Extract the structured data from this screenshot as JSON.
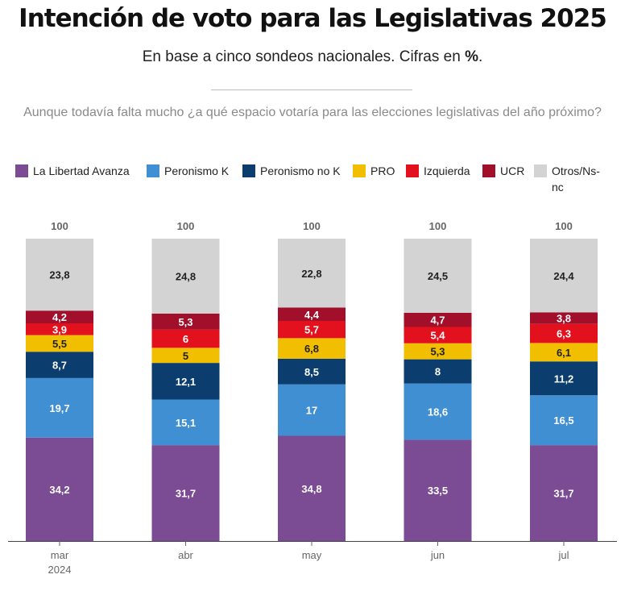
{
  "header": {
    "title": "Intención de voto para las Legislativas 2025",
    "subtitle_text": "En base a cinco sondeos nacionales. Cifras en ",
    "subtitle_unit": "%",
    "subtitle_end": ".",
    "question": "Aunque todavía falta mucho ¿a qué espacio votaría para las elecciones legislativas del año próximo?"
  },
  "chart_data": {
    "type": "bar",
    "stacked": true,
    "categories": [
      "mar",
      "abr",
      "may",
      "jun",
      "jul"
    ],
    "category_sublabels": [
      "2024",
      "",
      "",
      "",
      ""
    ],
    "totals": [
      "100",
      "100",
      "100",
      "100",
      "100"
    ],
    "ylim": [
      0,
      100
    ],
    "grid": false,
    "legend_position": "top",
    "series": [
      {
        "name": "La Libertad Avanza",
        "color": "#7b4c93",
        "labels": [
          "34,2",
          "31,7",
          "34,8",
          "33,5",
          "31,7"
        ],
        "values": [
          34.2,
          31.7,
          34.8,
          33.5,
          31.7
        ]
      },
      {
        "name": "Peronismo K",
        "color": "#3f8fd2",
        "labels": [
          "19,7",
          "15,1",
          "17",
          "18,6",
          "16,5"
        ],
        "values": [
          19.7,
          15.1,
          17,
          18.6,
          16.5
        ]
      },
      {
        "name": "Peronismo no K",
        "color": "#0b3e6e",
        "labels": [
          "8,7",
          "12,1",
          "8,5",
          "8",
          "11,2"
        ],
        "values": [
          8.7,
          12.1,
          8.5,
          8,
          11.2
        ]
      },
      {
        "name": "PRO",
        "color": "#f2be00",
        "labels": [
          "5,5",
          "5",
          "6,8",
          "5,3",
          "6,1"
        ],
        "values": [
          5.5,
          5,
          6.8,
          5.3,
          6.1
        ]
      },
      {
        "name": "Izquierda",
        "color": "#e3101d",
        "labels": [
          "3,9",
          "6",
          "5,7",
          "5,4",
          "6,3"
        ],
        "values": [
          3.9,
          6,
          5.7,
          5.4,
          6.3
        ]
      },
      {
        "name": "UCR",
        "color": "#a10f2b",
        "labels": [
          "4,2",
          "5,3",
          "4,4",
          "4,7",
          "3,8"
        ],
        "values": [
          4.2,
          5.3,
          4.4,
          4.7,
          3.8
        ]
      },
      {
        "name": "Otros/Ns-nc",
        "color": "#d3d3d3",
        "labels": [
          "23,8",
          "24,8",
          "22,8",
          "24,5",
          "24,4"
        ],
        "values": [
          23.8,
          24.8,
          22.8,
          24.5,
          24.4
        ]
      }
    ]
  }
}
